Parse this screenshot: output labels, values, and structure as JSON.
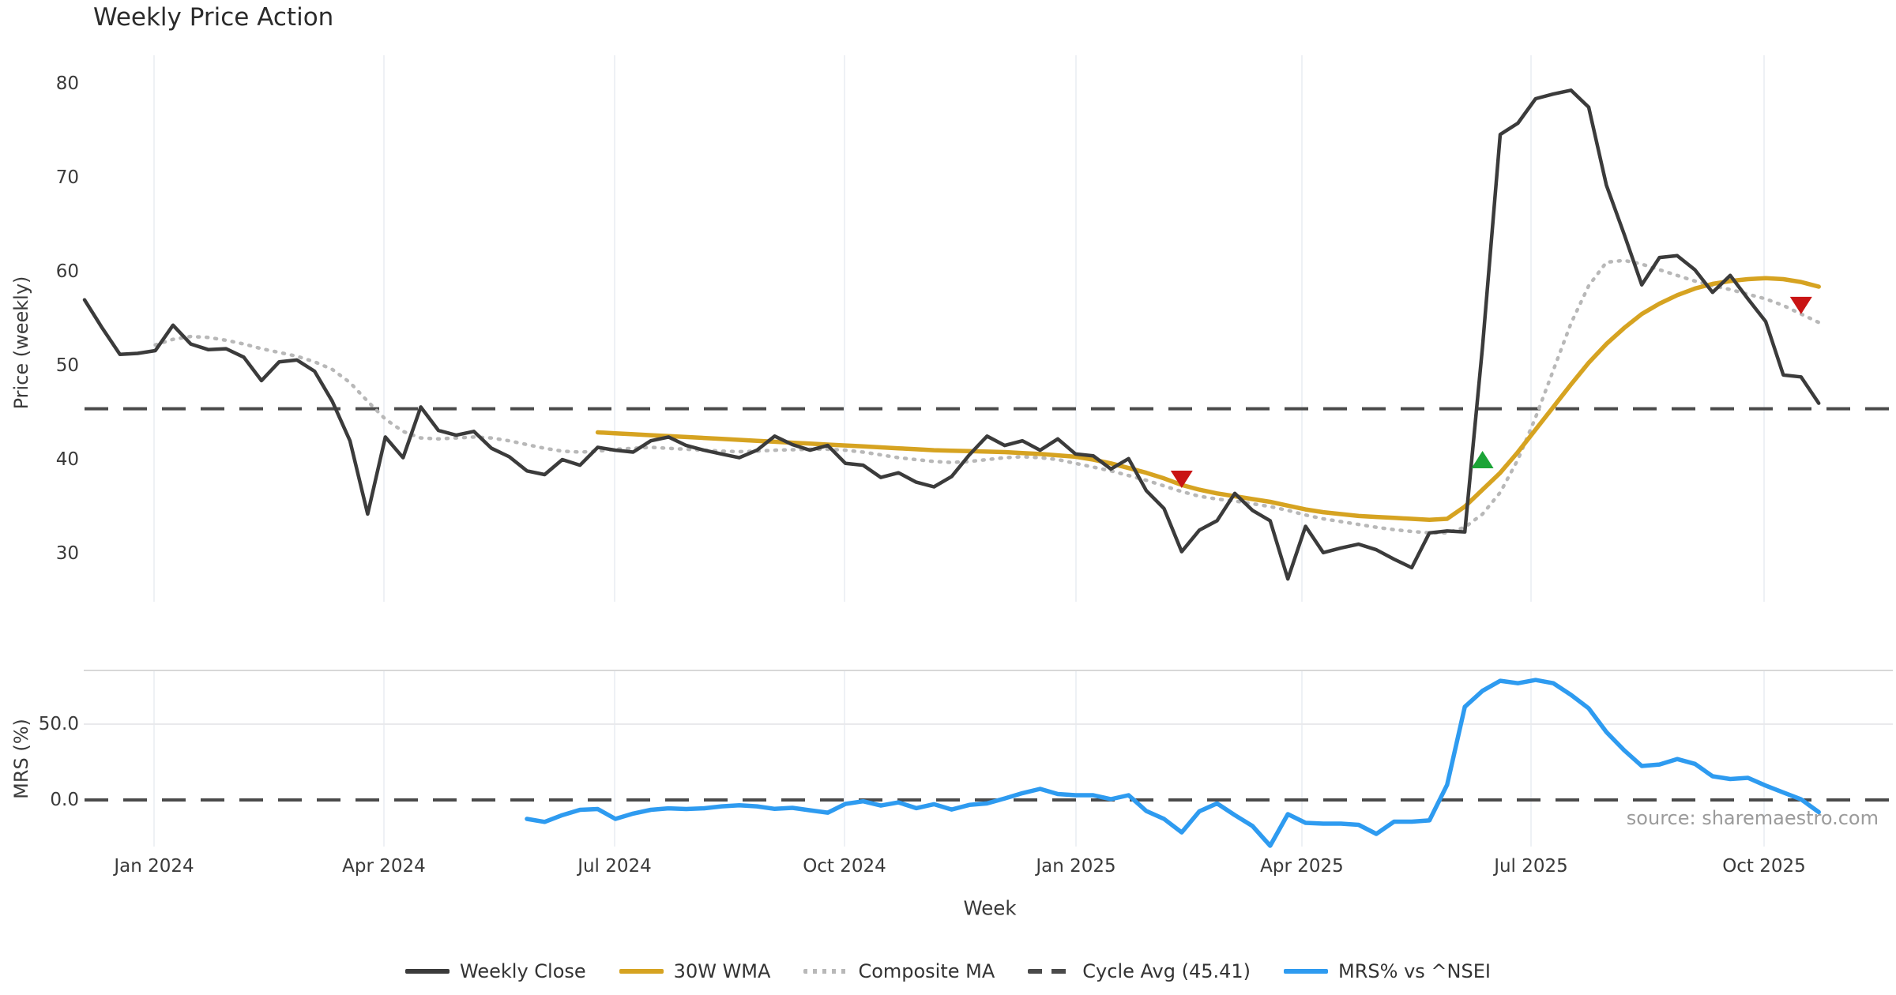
{
  "title": "Weekly Price Action",
  "source": "source: sharemaestro.com",
  "colors": {
    "close": "#3b3b3b",
    "wma": "#d6a321",
    "composite": "#b8b8b8",
    "cycle": "#4a4a4a",
    "mrs": "#2e9bf0",
    "sell": "#c91414",
    "buy": "#1ca437",
    "grid": "#eef1f5",
    "panel_border": "#d8d8d8",
    "hgrid": "#e9e9ec",
    "text": "#3a3a3a",
    "source_text": "#9b9b9b"
  },
  "legend": [
    {
      "label": "Weekly Close",
      "swatch": "solid",
      "color_key": "close"
    },
    {
      "label": "30W WMA",
      "swatch": "solid",
      "color_key": "wma"
    },
    {
      "label": "Composite MA",
      "swatch": "dotted",
      "color_key": "composite"
    },
    {
      "label": "Cycle Avg (45.41)",
      "swatch": "dashed",
      "color_key": "cycle"
    },
    {
      "label": "MRS% vs ^NSEI",
      "swatch": "solid",
      "color_key": "mrs"
    }
  ],
  "chart_data": {
    "type": "line",
    "title": "Weekly Price Action",
    "xlabel": "Week",
    "x_tick_labels": [
      "Jan 2024",
      "Apr 2024",
      "Jul 2024",
      "Oct 2024",
      "Jan 2025",
      "Apr 2025",
      "Jul 2025",
      "Oct 2025"
    ],
    "grid": "vertical-only",
    "legend_position": "bottom-center",
    "panels": [
      {
        "name": "price",
        "ylabel": "Price (weekly)",
        "ytick_labels": [
          "80",
          "70",
          "60",
          "50",
          "40",
          "30"
        ],
        "ytick_values": [
          80,
          70,
          60,
          50,
          40,
          30
        ],
        "ylim": [
          25,
          83
        ],
        "cycle_avg": 45.41,
        "series": [
          {
            "name": "Weekly Close",
            "color_key": "close",
            "style": "solid",
            "start_week": 0,
            "values": [
              57.0,
              54.0,
              51.2,
              51.3,
              51.6,
              54.3,
              52.3,
              51.7,
              51.8,
              50.9,
              48.4,
              50.4,
              50.6,
              49.4,
              46.2,
              42.0,
              34.2,
              42.4,
              40.2,
              45.6,
              43.1,
              42.6,
              43.0,
              41.2,
              40.3,
              38.8,
              38.4,
              40.0,
              39.4,
              41.3,
              41.0,
              40.8,
              42.0,
              42.4,
              41.5,
              41.0,
              40.6,
              40.2,
              41.0,
              42.5,
              41.6,
              41.0,
              41.5,
              39.6,
              39.4,
              38.1,
              38.6,
              37.6,
              37.1,
              38.2,
              40.5,
              42.5,
              41.5,
              42.0,
              41.0,
              42.2,
              40.6,
              40.4,
              39.0,
              40.1,
              36.7,
              34.8,
              30.2,
              32.5,
              33.5,
              36.4,
              34.6,
              33.5,
              27.3,
              32.9,
              30.1,
              30.6,
              31.0,
              30.4,
              29.4,
              28.5,
              32.2,
              32.4,
              32.3,
              52.0,
              74.6,
              75.8,
              78.4,
              78.9,
              79.3,
              77.5,
              69.2,
              64.0,
              58.6,
              61.5,
              61.7,
              60.2,
              57.8,
              59.6,
              57.1,
              54.7,
              49.0,
              48.8,
              46.0
            ]
          },
          {
            "name": "30W WMA",
            "color_key": "wma",
            "style": "solid",
            "start_week": 29,
            "values": [
              42.9,
              42.8,
              42.7,
              42.6,
              42.5,
              42.4,
              42.3,
              42.2,
              42.1,
              42.0,
              41.9,
              41.8,
              41.7,
              41.6,
              41.5,
              41.4,
              41.3,
              41.2,
              41.1,
              41.0,
              40.95,
              40.9,
              40.85,
              40.8,
              40.7,
              40.6,
              40.45,
              40.3,
              40.0,
              39.6,
              39.1,
              38.6,
              38.0,
              37.3,
              36.8,
              36.4,
              36.1,
              35.8,
              35.5,
              35.1,
              34.7,
              34.4,
              34.2,
              34.0,
              33.9,
              33.8,
              33.7,
              33.6,
              33.7,
              35.0,
              36.8,
              38.6,
              40.8,
              43.2,
              45.6,
              48.0,
              50.3,
              52.3,
              54.0,
              55.5,
              56.6,
              57.5,
              58.2,
              58.7,
              59.0,
              59.2,
              59.3,
              59.2,
              58.9,
              58.4
            ]
          },
          {
            "name": "Composite MA",
            "color_key": "composite",
            "style": "dotted",
            "start_week": 4,
            "values": [
              52.2,
              52.8,
              53.1,
              53.0,
              52.7,
              52.3,
              51.8,
              51.4,
              51.0,
              50.4,
              49.6,
              48.2,
              46.2,
              44.3,
              43.0,
              42.3,
              42.2,
              42.3,
              42.4,
              42.3,
              42.0,
              41.6,
              41.2,
              40.9,
              40.8,
              40.9,
              41.1,
              41.2,
              41.3,
              41.2,
              41.1,
              41.0,
              40.9,
              40.85,
              40.9,
              41.0,
              41.05,
              41.1,
              41.1,
              41.0,
              40.8,
              40.5,
              40.2,
              40.0,
              39.8,
              39.7,
              39.8,
              40.0,
              40.2,
              40.3,
              40.2,
              40.0,
              39.6,
              39.2,
              38.8,
              38.3,
              37.8,
              37.2,
              36.6,
              36.1,
              35.8,
              35.6,
              35.3,
              35.0,
              34.6,
              34.1,
              33.7,
              33.4,
              33.1,
              32.8,
              32.55,
              32.35,
              32.2,
              32.2,
              32.8,
              34.2,
              36.5,
              40.0,
              44.5,
              49.5,
              54.5,
              58.5,
              61.0,
              61.2,
              60.8,
              60.2,
              59.6,
              59.0,
              58.5,
              58.1,
              57.6,
              57.1,
              56.4,
              55.5,
              54.6
            ]
          },
          {
            "name": "Cycle Avg (45.41)",
            "color_key": "cycle",
            "style": "dashed-hline",
            "value": 45.41
          }
        ],
        "markers": [
          {
            "type": "sell",
            "shape": "triangle-down",
            "week": 62,
            "price": 37.9
          },
          {
            "type": "buy",
            "shape": "triangle-up",
            "week": 79,
            "price": 40.0
          },
          {
            "type": "sell",
            "shape": "triangle-down",
            "week": 97,
            "price": 56.4
          }
        ]
      },
      {
        "name": "mrs",
        "ylabel": "MRS (%)",
        "ytick_labels": [
          "50.0",
          "0.0"
        ],
        "ytick_values": [
          50,
          0
        ],
        "ylim": [
          -31,
          85
        ],
        "zero_line_dashed": true,
        "series": [
          {
            "name": "MRS% vs ^NSEI",
            "color_key": "mrs",
            "style": "solid",
            "start_week": 25,
            "values": [
              -12.5,
              -14.5,
              -10.0,
              -6.5,
              -6.0,
              -12.5,
              -9.0,
              -6.5,
              -5.5,
              -6.0,
              -5.5,
              -4.2,
              -3.5,
              -4.2,
              -5.9,
              -5.2,
              -6.8,
              -8.4,
              -2.6,
              -0.9,
              -3.7,
              -1.6,
              -5.4,
              -2.8,
              -6.3,
              -3.3,
              -2.3,
              1.0,
              4.5,
              7.3,
              3.9,
              3.1,
              3.1,
              0.5,
              3.1,
              -7.3,
              -12.5,
              -21.4,
              -7.5,
              -2.3,
              -10.0,
              -17.2,
              -30.2,
              -9.4,
              -15.1,
              -15.6,
              -15.6,
              -16.4,
              -22.4,
              -14.3,
              -14.3,
              -13.5,
              10.0,
              61.4,
              72.0,
              78.6,
              77.0,
              79.1,
              77.0,
              69.3,
              60.4,
              44.8,
              32.8,
              22.4,
              23.4,
              27.0,
              23.8,
              15.6,
              13.8,
              14.6,
              9.5,
              4.9,
              0.4,
              -8.0
            ]
          }
        ]
      }
    ]
  }
}
